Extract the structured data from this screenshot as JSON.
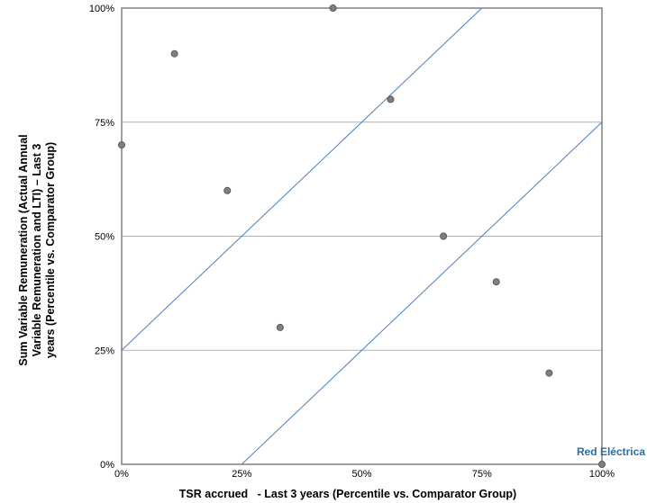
{
  "chart_data": {
    "type": "scatter",
    "title": "",
    "xlabel": "TSR accrued   - Last 3 years (Percentile vs. Comparator Group)",
    "ylabel_lines": [
      "Sum Variable Remuneration (Actual Annual",
      "Variable Remuneration and LTI) – Last 3",
      "years (Percentile vs. Comparator Group)"
    ],
    "xlim": [
      0,
      100
    ],
    "ylim": [
      0,
      100
    ],
    "xticks": [
      "0%",
      "25%",
      "50%",
      "75%",
      "100%"
    ],
    "yticks": [
      "0%",
      "25%",
      "50%",
      "75%",
      "100%"
    ],
    "grid": "horizontal",
    "points": [
      {
        "x": 0,
        "y": 70
      },
      {
        "x": 11,
        "y": 90
      },
      {
        "x": 22,
        "y": 60
      },
      {
        "x": 33,
        "y": 30
      },
      {
        "x": 44,
        "y": 100
      },
      {
        "x": 56,
        "y": 80
      },
      {
        "x": 67,
        "y": 50
      },
      {
        "x": 78,
        "y": 40
      },
      {
        "x": 89,
        "y": 20
      },
      {
        "x": 100,
        "y": 0
      }
    ],
    "highlight": {
      "label": "Red Eléctrica",
      "x": 100,
      "y": 0
    },
    "band_lines": [
      {
        "x": [
          0,
          75
        ],
        "y": [
          25,
          100
        ]
      },
      {
        "x": [
          25,
          100
        ],
        "y": [
          0,
          75
        ]
      }
    ],
    "colors": {
      "point": "#7f7f7f",
      "point_stroke": "#4d4d4d",
      "line": "#4a7ebb",
      "grid": "#b0b0b0",
      "frame": "#808080",
      "annotation": "#2e6e9e"
    }
  }
}
